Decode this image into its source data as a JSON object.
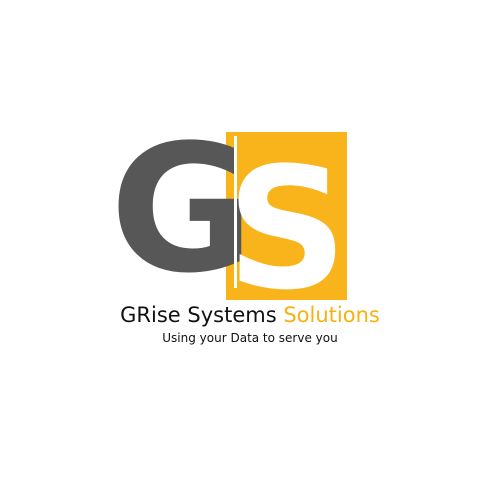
{
  "logo": {
    "monogram_first": "G",
    "monogram_second": "S",
    "name_part1": "GRise Systems",
    "name_part2": "Solutions",
    "tagline": "Using your Data to serve you",
    "colors": {
      "gray": "#575757",
      "gold": "#f8b41a",
      "text": "#111111",
      "accent_text": "#f5b212",
      "background": "#ffffff"
    }
  }
}
